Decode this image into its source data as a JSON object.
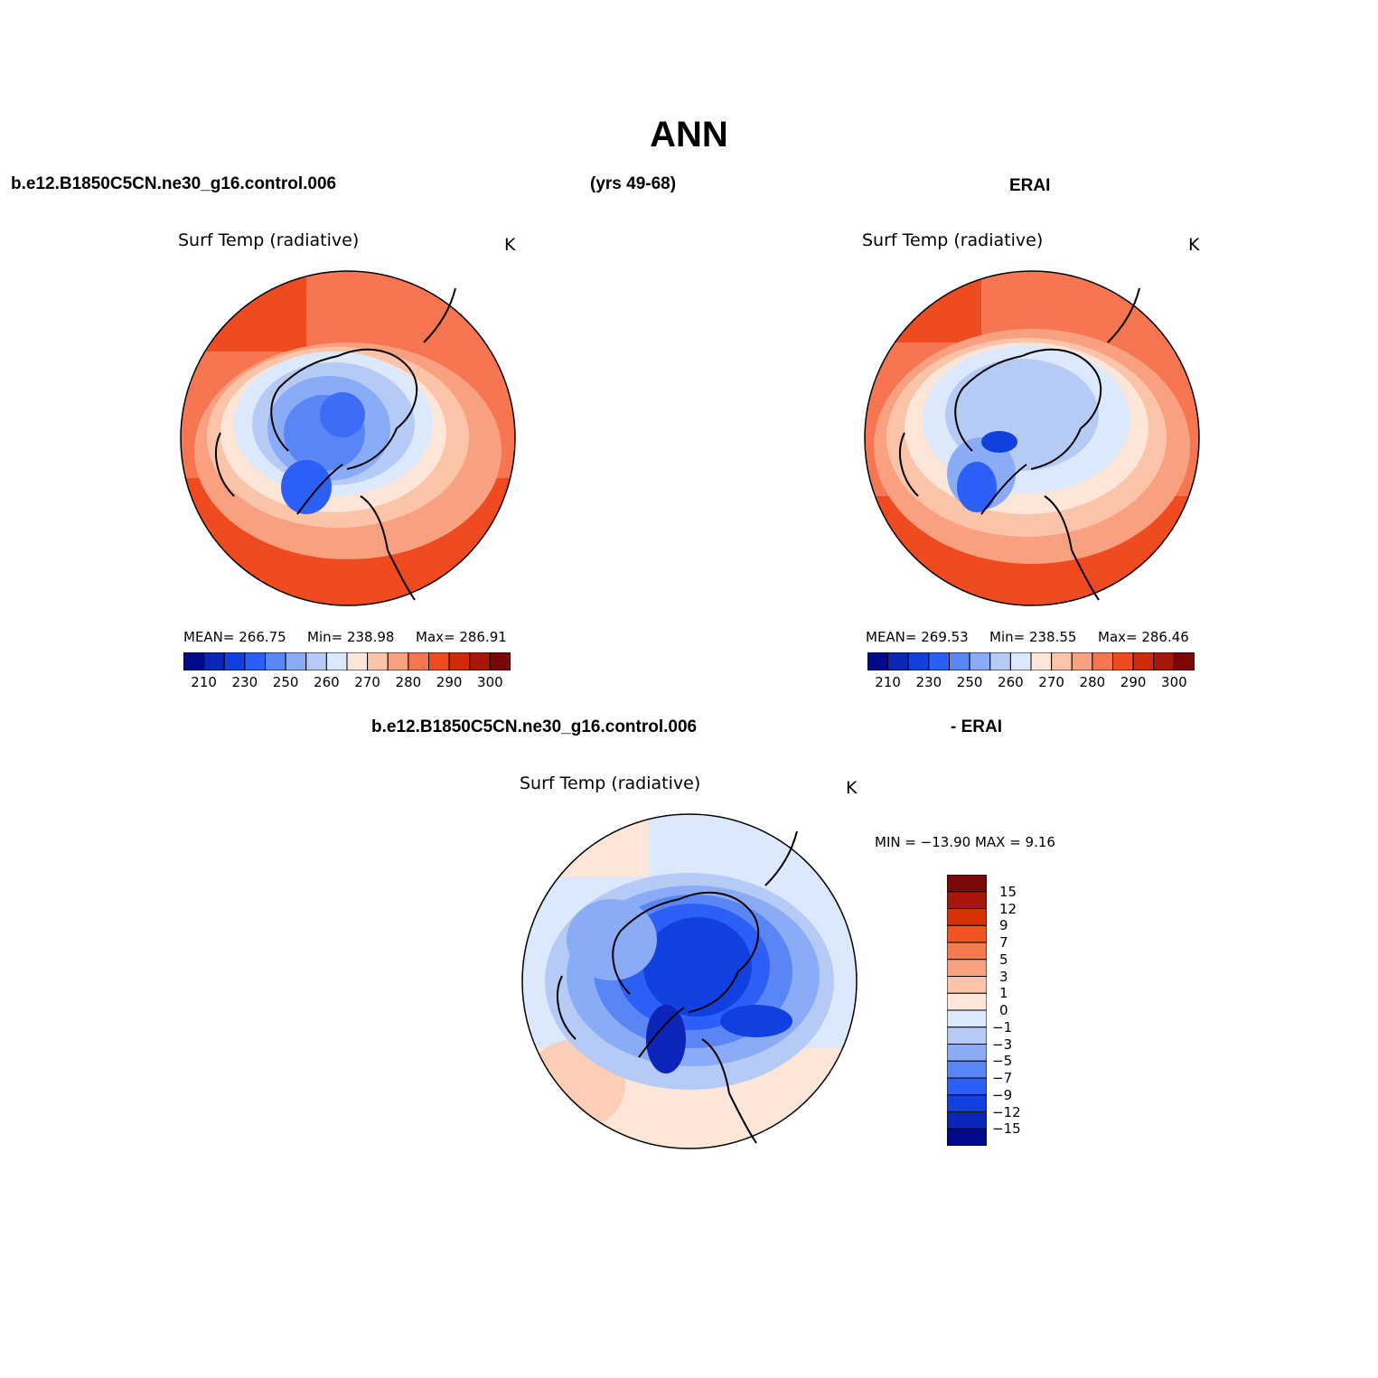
{
  "page": {
    "title": "ANN",
    "case_name": "b.e12.B1850C5CN.ne30_g16.control.006",
    "years": "(yrs 49-68)",
    "obs_name": "ERAI",
    "diff_case": "b.e12.B1850C5CN.ne30_g16.control.006",
    "diff_obs": "- ERAI"
  },
  "panels": {
    "model": {
      "variable": "Surf Temp (radiative)",
      "units": "K",
      "mean_label": "MEAN= 266.75",
      "min_label": "Min= 238.98",
      "max_label": "Max= 286.91"
    },
    "obs": {
      "variable": "Surf Temp (radiative)",
      "units": "K",
      "mean_label": "MEAN= 269.53",
      "min_label": "Min= 238.55",
      "max_label": "Max= 286.46"
    },
    "diff": {
      "variable": "Surf Temp (radiative)",
      "units": "K",
      "minmax_label": "MIN = −13.90 MAX =    9.16"
    }
  },
  "colorbars": {
    "abs": {
      "colors": [
        "#000a8a",
        "#0a25b8",
        "#1040e0",
        "#2c5ff5",
        "#5a85f5",
        "#8aabf5",
        "#b5caf5",
        "#dce8fb",
        "#fde5d8",
        "#fbc4a8",
        "#f8a080",
        "#f57650",
        "#ef4a20",
        "#d02a08",
        "#a81808",
        "#7a0808"
      ],
      "tick_labels": [
        "210",
        "230",
        "250",
        "260",
        "270",
        "280",
        "290",
        "300"
      ]
    },
    "diff": {
      "colors_top_to_bottom": [
        "#7a0808",
        "#a81808",
        "#d83008",
        "#ef5520",
        "#f57a50",
        "#f8a080",
        "#fbc4a8",
        "#fde5d8",
        "#dce8fb",
        "#b5caf5",
        "#8aabf5",
        "#5a85f5",
        "#2c5ff5",
        "#1040e0",
        "#0a25b8",
        "#000a8a"
      ],
      "tick_labels": [
        "15",
        "12",
        "9",
        "7",
        "5",
        "3",
        "1",
        "0",
        "−1",
        "−3",
        "−5",
        "−7",
        "−9",
        "−12",
        "−15"
      ]
    }
  }
}
